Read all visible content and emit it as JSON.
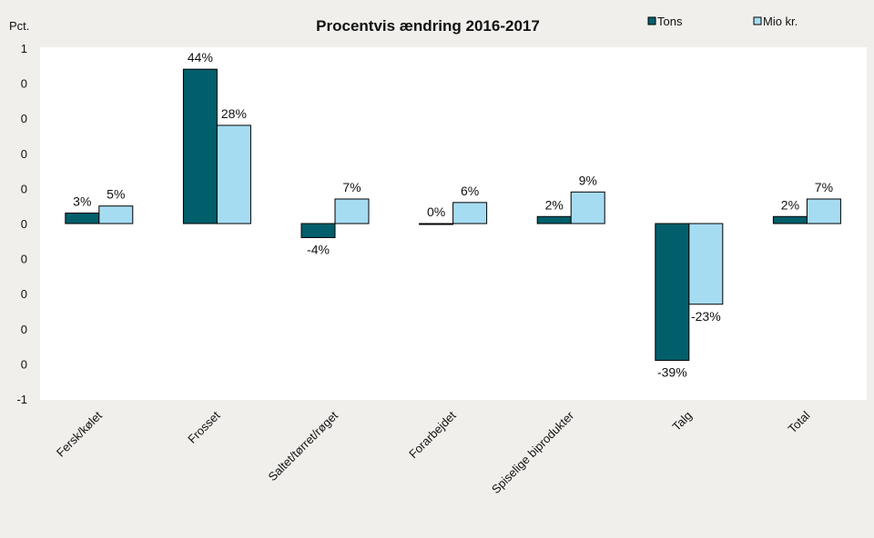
{
  "chart_data": {
    "type": "bar",
    "title": "Procentvis ændring 2016-2017",
    "ylabel": "Pct.",
    "xlabel": "",
    "ylim": [
      -0.5,
      0.5
    ],
    "yticks": [
      0.5,
      0.4,
      0.3,
      0.2,
      0.1,
      0,
      -0.1,
      -0.2,
      -0.3,
      -0.4,
      -0.5
    ],
    "ytick_labels": [
      "1",
      "0",
      "0",
      "0",
      "0",
      "0",
      "0",
      "0",
      "0",
      "0",
      "-1"
    ],
    "categories": [
      "Fersk/kølet",
      "Frosset",
      "Saltet/tørret/røget",
      "Forarbejdet",
      "Spiselige biprodukter",
      "Talg",
      "Total"
    ],
    "series": [
      {
        "name": "Tons",
        "color": "#005f6b",
        "values": [
          0.03,
          0.44,
          -0.04,
          0.0,
          0.02,
          -0.39,
          0.02
        ],
        "labels": [
          "3%",
          "44%",
          "-4%",
          "0%",
          "2%",
          "-39%",
          "2%"
        ]
      },
      {
        "name": "Mio kr.",
        "color": "#a6dcf2",
        "values": [
          0.05,
          0.28,
          0.07,
          0.06,
          0.09,
          -0.23,
          0.07
        ],
        "labels": [
          "5%",
          "28%",
          "7%",
          "6%",
          "9%",
          "-23%",
          "7%"
        ]
      }
    ],
    "grid": false,
    "legend": "top-right",
    "plot_background": "#ffffff",
    "page_background": "#f0efeb"
  }
}
